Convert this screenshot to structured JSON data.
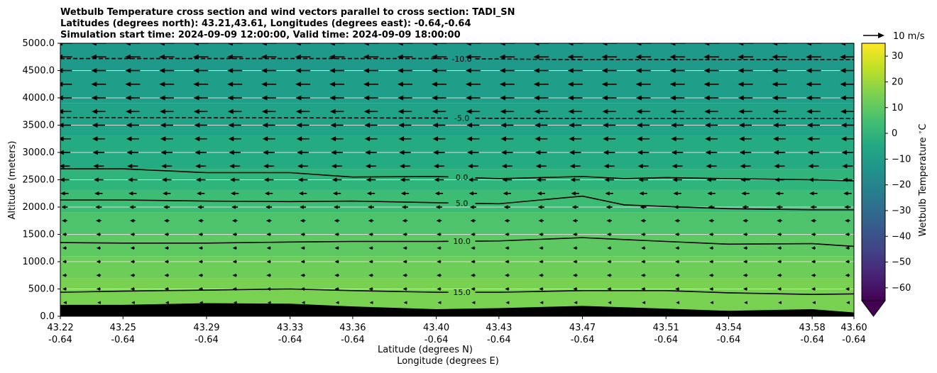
{
  "chart_data": {
    "type": "heatmap",
    "title_lines": [
      "Wetbulb Temperature cross section and wind vectors parallel to cross section: TADI_SN",
      "Latitudes (degrees north): 43.21,43.61, Longitudes (degrees east): -0.64,-0.64",
      "Simulation start time: 2024-09-09 12:00:00, Valid time: 2024-09-09 18:00:00"
    ],
    "xlabel": "Latitude (degrees N)",
    "xlabel2": "Longitude (degrees E)",
    "ylabel": "Altitude (meters)",
    "ylim": [
      0,
      5000
    ],
    "yticks": [
      "0.0",
      "500.0",
      "1000.0",
      "1500.0",
      "2000.0",
      "2500.0",
      "3000.0",
      "3500.0",
      "4000.0",
      "4500.0",
      "5000.0"
    ],
    "xticks": [
      {
        "lat": "43.22",
        "lon": "-0.64"
      },
      {
        "lat": "43.25",
        "lon": "-0.64"
      },
      {
        "lat": "43.29",
        "lon": "-0.64"
      },
      {
        "lat": "43.33",
        "lon": "-0.64"
      },
      {
        "lat": "43.36",
        "lon": "-0.64"
      },
      {
        "lat": "43.40",
        "lon": "-0.64"
      },
      {
        "lat": "43.43",
        "lon": "-0.64"
      },
      {
        "lat": "43.47",
        "lon": "-0.64"
      },
      {
        "lat": "43.51",
        "lon": "-0.64"
      },
      {
        "lat": "43.54",
        "lon": "-0.64"
      },
      {
        "lat": "43.58",
        "lon": "-0.64"
      },
      {
        "lat": "43.60",
        "lon": "-0.64"
      }
    ],
    "grid": "horizontal",
    "colorbar": {
      "label": "Wetbulb Temperature $^\\circ$C",
      "range": [
        -65,
        35
      ],
      "ticks": [
        "30",
        "20",
        "10",
        "0",
        "−10",
        "−20",
        "−30",
        "−40",
        "−50",
        "−60"
      ],
      "extend": "min",
      "colormap": "viridis"
    },
    "quiver_key": "10 m/s",
    "contours": [
      {
        "label": "-10.0",
        "style": "dashed",
        "lat": [
          43.22,
          43.4,
          43.47,
          43.6
        ],
        "alt": [
          4720,
          4720,
          4700,
          4700
        ]
      },
      {
        "label": "-5.0",
        "style": "dashed",
        "lat": [
          43.22,
          43.4,
          43.47,
          43.6
        ],
        "alt": [
          3640,
          3630,
          3620,
          3620
        ]
      },
      {
        "label": "0.0",
        "style": "solid",
        "lat": [
          43.22,
          43.25,
          43.29,
          43.33,
          43.36,
          43.4,
          43.43,
          43.47,
          43.49,
          43.51,
          43.54,
          43.58,
          43.6
        ],
        "alt": [
          2700,
          2700,
          2630,
          2630,
          2550,
          2560,
          2520,
          2560,
          2520,
          2540,
          2520,
          2500,
          2480
        ]
      },
      {
        "label": "5.0",
        "style": "solid",
        "lat": [
          43.22,
          43.25,
          43.29,
          43.33,
          43.36,
          43.4,
          43.43,
          43.47,
          43.49,
          43.51,
          43.54,
          43.58,
          43.6
        ],
        "alt": [
          2130,
          2130,
          2110,
          2100,
          2110,
          2080,
          2060,
          2200,
          2040,
          2010,
          1970,
          1950,
          1950
        ]
      },
      {
        "label": "10.0",
        "style": "solid",
        "lat": [
          43.22,
          43.25,
          43.29,
          43.33,
          43.36,
          43.4,
          43.43,
          43.47,
          43.51,
          43.54,
          43.58,
          43.6
        ],
        "alt": [
          1350,
          1340,
          1340,
          1360,
          1370,
          1370,
          1380,
          1440,
          1370,
          1320,
          1330,
          1280
        ]
      },
      {
        "label": "15.0",
        "style": "solid",
        "lat": [
          43.22,
          43.25,
          43.29,
          43.33,
          43.36,
          43.4,
          43.43,
          43.47,
          43.51,
          43.54,
          43.58,
          43.6
        ],
        "alt": [
          440,
          460,
          480,
          500,
          470,
          440,
          440,
          470,
          470,
          430,
          400,
          410
        ]
      }
    ],
    "terrain": {
      "lat": [
        43.22,
        43.25,
        43.29,
        43.33,
        43.36,
        43.4,
        43.43,
        43.47,
        43.51,
        43.54,
        43.58,
        43.6
      ],
      "alt": [
        210,
        210,
        240,
        230,
        180,
        130,
        150,
        190,
        140,
        100,
        130,
        70
      ]
    },
    "wind_levels_m": [
      40,
      250,
      500,
      750,
      1000,
      1250,
      1500,
      1750,
      2000,
      2250,
      2500,
      2750,
      3000,
      3250,
      3500,
      3750,
      4000,
      4250,
      4500,
      4750,
      5000
    ],
    "wind_speed_ms": [
      0.2,
      1.2,
      2.0,
      2.2,
      2.0,
      2.0,
      2.2,
      2.5,
      3.0,
      3.8,
      4.5,
      5.0,
      5.5,
      6.0,
      6.0,
      6.5,
      6.8,
      7.0,
      7.0,
      7.2,
      7.2
    ]
  }
}
